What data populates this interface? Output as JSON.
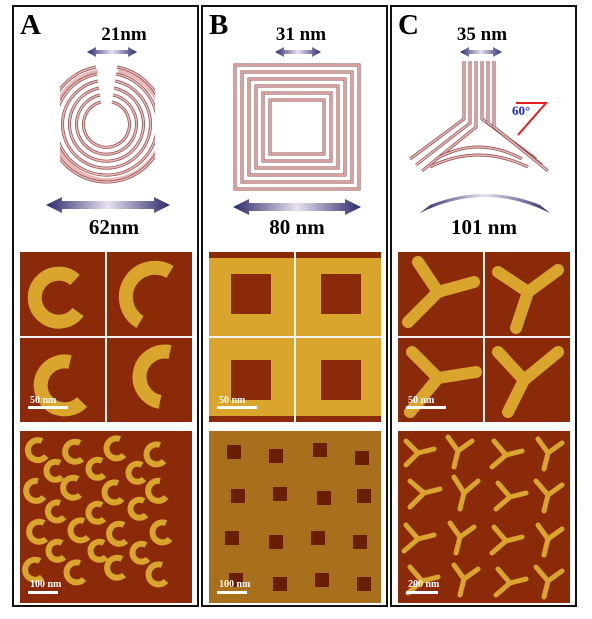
{
  "figure": {
    "panels": [
      {
        "letter": "A",
        "top_dimension": "21nm",
        "bottom_dimension": "62nm",
        "shape": "open-ring",
        "zoom_scale_label": "50 nm",
        "overview_scale_label": "100 nm"
      },
      {
        "letter": "B",
        "top_dimension": "31 nm",
        "bottom_dimension": "80 nm",
        "shape": "square-frame",
        "zoom_scale_label": "50 nm",
        "overview_scale_label": "100 nm"
      },
      {
        "letter": "C",
        "top_dimension": "35 nm",
        "bottom_dimension": "101 nm",
        "angle_label": "60°",
        "shape": "three-arm",
        "zoom_scale_label": "50 nm",
        "overview_scale_label": "200 nm"
      }
    ],
    "colors": {
      "schematic_fill": "#e9b7b7",
      "schematic_stroke": "#8a4a4a",
      "afm_background": "#8a2a08",
      "afm_feature": "#d9a52c",
      "arrow_light": "#e8e0f0",
      "arrow_dark": "#2c2a6a",
      "angle_mark": "#e02020",
      "angle_text": "#1a2ad0"
    }
  }
}
